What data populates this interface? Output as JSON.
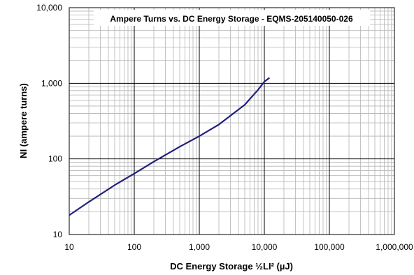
{
  "chart_data": {
    "type": "line",
    "title": "Ampere Turns vs. DC Energy Storage - EQMS-205140050-026",
    "xlabel": "DC Energy Storage ½LI² (µJ)",
    "ylabel": "NI (ampere turns)",
    "x_scale": "log",
    "y_scale": "log",
    "xlim": [
      10,
      1000000
    ],
    "ylim": [
      10,
      10000
    ],
    "x_ticks": [
      "10",
      "100",
      "1,000",
      "10,000",
      "100,000",
      "1,000,000"
    ],
    "y_ticks": [
      "10",
      "100",
      "1,000",
      "10,000"
    ],
    "grid": true,
    "line_color": "#1f1f7a",
    "series": [
      {
        "x": [
          10,
          20,
          50,
          100,
          200,
          500,
          1000,
          2000,
          5000,
          8000,
          10000,
          12000
        ],
        "y": [
          18,
          27,
          45,
          64,
          92,
          145,
          200,
          285,
          520,
          820,
          1050,
          1180
        ]
      }
    ]
  }
}
